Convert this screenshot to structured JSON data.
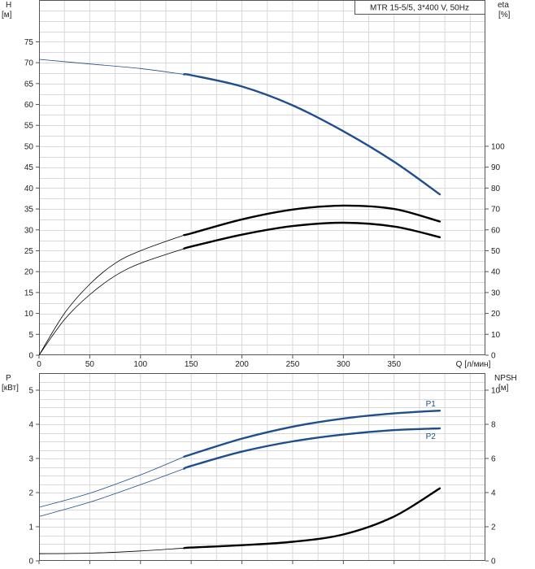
{
  "chart_data": [
    {
      "type": "line",
      "legend": "MTR 15-5/5, 3*400 V, 50Hz",
      "xlabel": "Q [л/мин]",
      "xlim": [
        0,
        440
      ],
      "x_ticks": [
        0,
        50,
        100,
        150,
        200,
        250,
        300,
        350
      ],
      "y_left": {
        "label": [
          "H",
          "[м]"
        ],
        "ylim": [
          0,
          85
        ],
        "ticks": [
          0,
          5,
          10,
          15,
          20,
          25,
          30,
          35,
          40,
          45,
          50,
          55,
          60,
          65,
          70,
          75
        ]
      },
      "y_right": {
        "label": [
          "eta",
          "[%]"
        ],
        "ylim": [
          0,
          170
        ],
        "ticks": [
          0,
          10,
          20,
          30,
          40,
          50,
          60,
          70,
          80,
          90,
          100
        ]
      },
      "series": [
        {
          "axis": "left",
          "color": "#1f4e8c",
          "x": [
            0,
            50,
            100,
            143,
            150,
            200,
            250,
            300,
            350,
            395
          ],
          "y": [
            70.8,
            69.7,
            68.6,
            67.2,
            67.0,
            64.3,
            59.8,
            53.6,
            46.3,
            38.5
          ],
          "solid_from": 143
        },
        {
          "axis": "right",
          "color": "#000000",
          "x": [
            0,
            25,
            50,
            75,
            100,
            143,
            150,
            200,
            250,
            300,
            350,
            395
          ],
          "y": [
            0,
            20,
            34,
            44,
            50,
            57.5,
            58.3,
            65,
            69.7,
            71.6,
            70,
            64
          ],
          "solid_from": 143
        },
        {
          "axis": "right",
          "color": "#000000",
          "x": [
            0,
            25,
            50,
            75,
            100,
            143,
            150,
            200,
            250,
            300,
            350,
            395
          ],
          "y": [
            0,
            17,
            29,
            38,
            44,
            51,
            52,
            57.7,
            61.8,
            63.4,
            61.6,
            56.5
          ],
          "solid_from": 143
        }
      ]
    },
    {
      "type": "line",
      "xlim": [
        0,
        440
      ],
      "x_ticks": [
        0,
        50,
        100,
        150,
        200,
        250,
        300,
        350
      ],
      "y_left": {
        "label": [
          "P",
          "[кВт]"
        ],
        "ylim": [
          0,
          5.5
        ],
        "ticks": [
          0,
          1,
          2,
          3,
          4,
          5
        ]
      },
      "y_right": {
        "label": [
          "NPSH",
          "[м]"
        ],
        "ylim": [
          0,
          11
        ],
        "ticks": [
          0,
          2,
          4,
          6,
          8,
          10
        ]
      },
      "series": [
        {
          "name": "P1",
          "axis": "left",
          "color": "#1f4e8c",
          "x": [
            0,
            50,
            100,
            143,
            150,
            200,
            250,
            300,
            350,
            395
          ],
          "y": [
            1.57,
            1.98,
            2.52,
            3.05,
            3.12,
            3.58,
            3.93,
            4.17,
            4.32,
            4.4
          ],
          "solid_from": 143
        },
        {
          "name": "P2",
          "axis": "left",
          "color": "#1f4e8c",
          "x": [
            0,
            50,
            100,
            143,
            150,
            200,
            250,
            300,
            350,
            395
          ],
          "y": [
            1.3,
            1.72,
            2.23,
            2.7,
            2.78,
            3.2,
            3.5,
            3.7,
            3.83,
            3.88
          ],
          "solid_from": 143
        },
        {
          "name": "NPSH",
          "axis": "right",
          "color": "#000000",
          "x": [
            0,
            50,
            100,
            143,
            150,
            200,
            250,
            300,
            350,
            395
          ],
          "y": [
            0.42,
            0.45,
            0.58,
            0.75,
            0.78,
            0.92,
            1.12,
            1.55,
            2.6,
            4.25
          ],
          "solid_from": 143
        }
      ]
    }
  ]
}
